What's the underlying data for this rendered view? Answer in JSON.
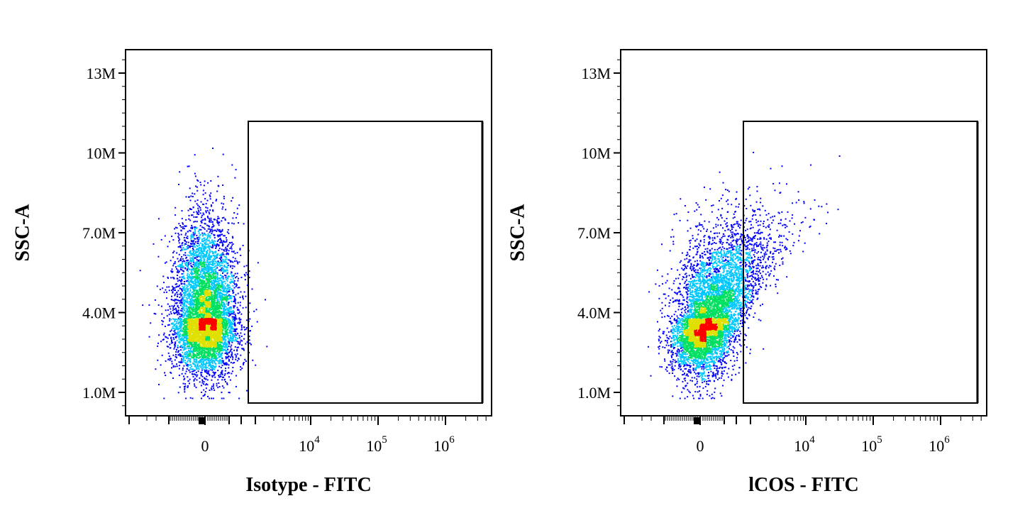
{
  "chart_data": [
    {
      "type": "scatter",
      "subtype": "flow-cytometry-density",
      "title": "",
      "xlabel": "Isotype - FITC",
      "ylabel": "SSC-A",
      "x_scale": "biexponential",
      "y_scale": "linear",
      "ylim": [
        0,
        14000000
      ],
      "y_ticks": [
        {
          "value": 1000000,
          "label": "1.0M"
        },
        {
          "value": 4000000,
          "label": "4.0M"
        },
        {
          "value": 7000000,
          "label": "7.0M"
        },
        {
          "value": 10000000,
          "label": "10M"
        },
        {
          "value": 13000000,
          "label": "13M"
        }
      ],
      "x_ticks": [
        {
          "value": 0,
          "label": "0",
          "exp": ""
        },
        {
          "value": 10000,
          "label": "10",
          "exp": "4"
        },
        {
          "value": 100000,
          "label": "10",
          "exp": "5"
        },
        {
          "value": 1000000,
          "label": "10",
          "exp": "6"
        }
      ],
      "population": {
        "center_x": 0,
        "center_y": 3800000,
        "spread_y": 1800000,
        "shift_right": 0.0
      },
      "gate": {
        "shape": "rectangle"
      },
      "grid": false
    },
    {
      "type": "scatter",
      "subtype": "flow-cytometry-density",
      "title": "",
      "xlabel": "lCOS - FITC",
      "ylabel": "SSC-A",
      "x_scale": "biexponential",
      "y_scale": "linear",
      "ylim": [
        0,
        14000000
      ],
      "y_ticks": [
        {
          "value": 1000000,
          "label": "1.0M"
        },
        {
          "value": 4000000,
          "label": "4.0M"
        },
        {
          "value": 7000000,
          "label": "7.0M"
        },
        {
          "value": 10000000,
          "label": "10M"
        },
        {
          "value": 13000000,
          "label": "13M"
        }
      ],
      "x_ticks": [
        {
          "value": 0,
          "label": "0",
          "exp": ""
        },
        {
          "value": 10000,
          "label": "10",
          "exp": "4"
        },
        {
          "value": 100000,
          "label": "10",
          "exp": "5"
        },
        {
          "value": 1000000,
          "label": "10",
          "exp": "6"
        }
      ],
      "population": {
        "center_x": 0,
        "center_y": 3800000,
        "spread_y": 1800000,
        "shift_right": 1.0
      },
      "gate": {
        "shape": "rectangle"
      },
      "grid": false
    }
  ],
  "colors": {
    "density_low": "#0000ff",
    "density_mid_low": "#00c8ff",
    "density_mid": "#00e060",
    "density_mid_high": "#e0e000",
    "density_high": "#ff0000",
    "axis": "#000000"
  }
}
